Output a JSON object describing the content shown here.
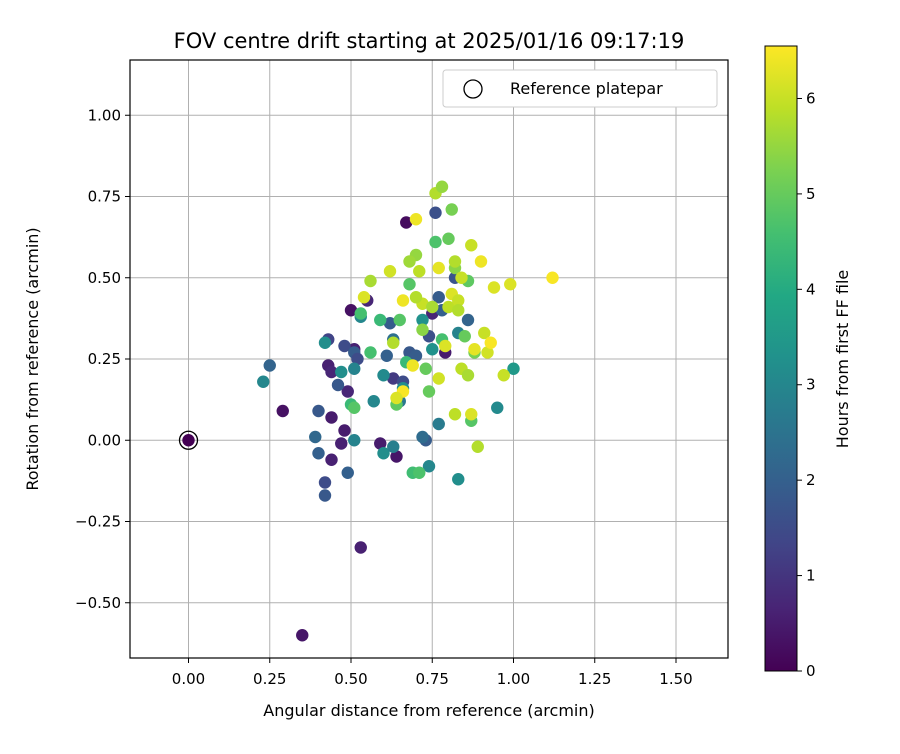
{
  "chart_data": {
    "type": "scatter",
    "title": "FOV centre drift starting at 2025/01/16 09:17:19",
    "xlabel": "Angular distance from reference (arcmin)",
    "ylabel": "Rotation from reference (arcmin)",
    "colorbar_label": "Hours from first FF file",
    "xlim": [
      -0.18,
      1.66
    ],
    "ylim": [
      -0.67,
      1.17
    ],
    "clim": [
      0,
      6.55
    ],
    "x_ticks": [
      0.0,
      0.25,
      0.5,
      0.75,
      1.0,
      1.25,
      1.5
    ],
    "x_tick_labels": [
      "0.00",
      "0.25",
      "0.50",
      "0.75",
      "1.00",
      "1.25",
      "1.50"
    ],
    "y_ticks": [
      -0.5,
      -0.25,
      0.0,
      0.25,
      0.5,
      0.75,
      1.0
    ],
    "y_tick_labels": [
      "−0.50",
      "−0.25",
      "0.00",
      "0.25",
      "0.50",
      "0.75",
      "1.00"
    ],
    "colorbar_ticks": [
      0,
      1,
      2,
      3,
      4,
      5,
      6
    ],
    "colorbar_tick_labels": [
      "0",
      "1",
      "2",
      "3",
      "4",
      "5",
      "6"
    ],
    "colormap": "viridis",
    "grid": true,
    "legend": {
      "position": "upper right",
      "entries": [
        "Reference platepar"
      ]
    },
    "reference_point": {
      "x": 0.0,
      "y": 0.0,
      "marker": "open circle"
    },
    "series": [
      {
        "points": [
          [
            0.0,
            0.0,
            0.0
          ],
          [
            0.29,
            0.09,
            0.3
          ],
          [
            0.35,
            -0.6,
            0.4
          ],
          [
            0.43,
            0.23,
            0.6
          ],
          [
            0.44,
            0.21,
            0.7
          ],
          [
            0.44,
            0.07,
            0.5
          ],
          [
            0.44,
            -0.06,
            0.6
          ],
          [
            0.47,
            -0.01,
            0.6
          ],
          [
            0.48,
            0.03,
            0.5
          ],
          [
            0.49,
            0.15,
            0.7
          ],
          [
            0.5,
            0.4,
            0.3
          ],
          [
            0.51,
            0.28,
            0.6
          ],
          [
            0.53,
            -0.33,
            0.6
          ],
          [
            0.55,
            0.43,
            0.7
          ],
          [
            0.59,
            -0.01,
            0.5
          ],
          [
            0.64,
            -0.05,
            0.4
          ],
          [
            0.67,
            0.67,
            0.2
          ],
          [
            0.79,
            0.27,
            0.5
          ],
          [
            0.75,
            0.39,
            0.7
          ],
          [
            0.25,
            0.23,
            2.1
          ],
          [
            0.39,
            0.01,
            2.2
          ],
          [
            0.4,
            -0.04,
            2.0
          ],
          [
            0.4,
            0.09,
            1.8
          ],
          [
            0.42,
            -0.13,
            1.5
          ],
          [
            0.42,
            -0.17,
            1.8
          ],
          [
            0.43,
            0.31,
            1.3
          ],
          [
            0.46,
            0.17,
            1.8
          ],
          [
            0.48,
            0.29,
            1.5
          ],
          [
            0.49,
            -0.1,
            2.0
          ],
          [
            0.51,
            0.27,
            1.9
          ],
          [
            0.52,
            0.25,
            1.5
          ],
          [
            0.61,
            0.26,
            2.0
          ],
          [
            0.62,
            0.36,
            1.9
          ],
          [
            0.63,
            0.19,
            1.1
          ],
          [
            0.63,
            0.31,
            2.4
          ],
          [
            0.66,
            0.18,
            1.5
          ],
          [
            0.68,
            0.27,
            1.8
          ],
          [
            0.7,
            0.26,
            1.9
          ],
          [
            0.73,
            0.0,
            1.9
          ],
          [
            0.74,
            0.32,
            1.6
          ],
          [
            0.76,
            0.7,
            1.6
          ],
          [
            0.77,
            0.44,
            1.9
          ],
          [
            0.78,
            0.4,
            2.0
          ],
          [
            0.82,
            0.5,
            1.7
          ],
          [
            0.86,
            0.37,
            2.1
          ],
          [
            0.72,
            0.01,
            2.3
          ],
          [
            0.65,
            0.12,
            2.6
          ],
          [
            0.23,
            0.18,
            3.0
          ],
          [
            0.42,
            0.3,
            3.2
          ],
          [
            0.47,
            0.21,
            3.2
          ],
          [
            0.51,
            0.22,
            2.9
          ],
          [
            0.51,
            0.0,
            2.9
          ],
          [
            0.53,
            0.38,
            3.0
          ],
          [
            0.57,
            0.12,
            3.0
          ],
          [
            0.6,
            0.2,
            3.1
          ],
          [
            0.6,
            -0.04,
            3.2
          ],
          [
            0.63,
            -0.02,
            2.8
          ],
          [
            0.66,
            0.16,
            3.2
          ],
          [
            0.72,
            0.37,
            3.3
          ],
          [
            0.74,
            -0.08,
            3.0
          ],
          [
            0.75,
            0.28,
            3.3
          ],
          [
            0.77,
            0.05,
            2.7
          ],
          [
            0.83,
            -0.12,
            3.2
          ],
          [
            0.83,
            0.33,
            2.9
          ],
          [
            0.95,
            0.1,
            3.1
          ],
          [
            1.0,
            0.22,
            3.5
          ],
          [
            0.67,
            0.24,
            4.4
          ],
          [
            0.5,
            0.11,
            4.4
          ],
          [
            0.51,
            0.1,
            4.8
          ],
          [
            0.53,
            0.39,
            4.6
          ],
          [
            0.56,
            0.27,
            4.6
          ],
          [
            0.59,
            0.37,
            4.4
          ],
          [
            0.64,
            0.11,
            4.9
          ],
          [
            0.65,
            0.37,
            4.8
          ],
          [
            0.68,
            0.48,
            4.8
          ],
          [
            0.69,
            -0.1,
            4.5
          ],
          [
            0.71,
            -0.1,
            4.7
          ],
          [
            0.72,
            0.34,
            5.4
          ],
          [
            0.73,
            0.22,
            5.0
          ],
          [
            0.74,
            0.15,
            5.0
          ],
          [
            0.76,
            0.61,
            4.7
          ],
          [
            0.78,
            0.31,
            4.6
          ],
          [
            0.8,
            0.62,
            5.0
          ],
          [
            0.81,
            0.71,
            5.2
          ],
          [
            0.85,
            0.32,
            5.0
          ],
          [
            0.86,
            0.49,
            4.9
          ],
          [
            0.87,
            0.06,
            4.8
          ],
          [
            0.88,
            0.27,
            5.2
          ],
          [
            0.76,
            0.76,
            5.8
          ],
          [
            0.78,
            0.78,
            5.5
          ],
          [
            0.7,
            0.57,
            5.5
          ],
          [
            0.68,
            0.55,
            5.6
          ],
          [
            0.82,
            0.53,
            5.4
          ],
          [
            0.71,
            0.52,
            5.9
          ],
          [
            0.56,
            0.49,
            5.7
          ],
          [
            0.72,
            0.42,
            6.0
          ],
          [
            0.63,
            0.3,
            5.8
          ],
          [
            0.62,
            0.52,
            6.1
          ],
          [
            0.54,
            0.44,
            6.2
          ],
          [
            0.66,
            0.43,
            6.4
          ],
          [
            0.7,
            0.44,
            5.8
          ],
          [
            0.75,
            0.41,
            5.7
          ],
          [
            0.8,
            0.41,
            5.9
          ],
          [
            0.81,
            0.45,
            6.2
          ],
          [
            0.82,
            0.55,
            5.8
          ],
          [
            0.82,
            0.08,
            5.9
          ],
          [
            0.83,
            0.43,
            6.0
          ],
          [
            0.83,
            0.4,
            5.8
          ],
          [
            0.84,
            0.5,
            6.0
          ],
          [
            0.84,
            0.22,
            5.9
          ],
          [
            0.86,
            0.2,
            5.7
          ],
          [
            0.87,
            0.08,
            6.2
          ],
          [
            0.87,
            0.6,
            6.0
          ],
          [
            0.88,
            0.28,
            6.3
          ],
          [
            0.89,
            -0.02,
            5.8
          ],
          [
            0.9,
            0.55,
            6.4
          ],
          [
            0.91,
            0.33,
            6.0
          ],
          [
            0.92,
            0.27,
            6.1
          ],
          [
            0.93,
            0.3,
            6.5
          ],
          [
            0.94,
            0.47,
            6.2
          ],
          [
            0.97,
            0.2,
            6.0
          ],
          [
            0.99,
            0.48,
            6.2
          ],
          [
            1.12,
            0.5,
            6.5
          ],
          [
            0.7,
            0.68,
            6.4
          ],
          [
            0.77,
            0.53,
            6.3
          ],
          [
            0.79,
            0.29,
            6.2
          ],
          [
            0.77,
            0.19,
            6.1
          ],
          [
            0.69,
            0.23,
            6.4
          ],
          [
            0.66,
            0.15,
            6.5
          ],
          [
            0.64,
            0.13,
            6.2
          ]
        ]
      }
    ]
  }
}
